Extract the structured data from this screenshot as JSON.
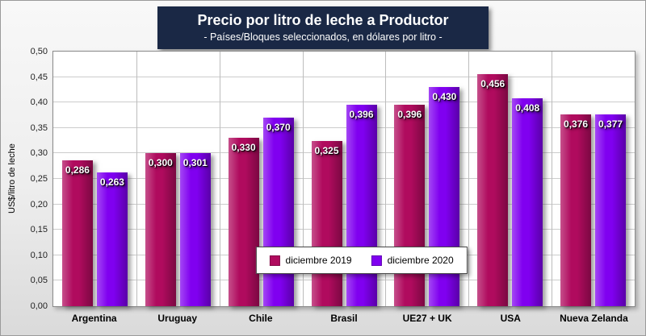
{
  "chart_data": {
    "type": "bar",
    "title": "Precio por litro de leche a Productor",
    "subtitle": "- Países/Bloques seleccionados, en dólares por litro -",
    "ylabel": "US$/litro de leche",
    "ylim": [
      0,
      0.5
    ],
    "ytick_step": 0.05,
    "ytick_labels": [
      "0,00",
      "0,05",
      "0,10",
      "0,15",
      "0,20",
      "0,25",
      "0,30",
      "0,35",
      "0,40",
      "0,45",
      "0,50"
    ],
    "categories": [
      "Argentina",
      "Uruguay",
      "Chile",
      "Brasil",
      "UE27 + UK",
      "USA",
      "Nueva Zelanda"
    ],
    "series": [
      {
        "name": "diciembre 2019",
        "color": "#b00b5e",
        "values": [
          0.286,
          0.3,
          0.33,
          0.325,
          0.396,
          0.456,
          0.376
        ],
        "labels": [
          "0,286",
          "0,300",
          "0,330",
          "0,325",
          "0,396",
          "0,456",
          "0,376"
        ]
      },
      {
        "name": "diciembre 2020",
        "color": "#8000f0",
        "values": [
          0.263,
          0.301,
          0.37,
          0.396,
          0.43,
          0.408,
          0.377
        ],
        "labels": [
          "0,263",
          "0,301",
          "0,370",
          "0,396",
          "0,430",
          "0,408",
          "0,377"
        ]
      }
    ],
    "grid": true,
    "legend_position": "bottom-center-inside",
    "colors": {
      "title_background": "#1a2845",
      "title_text": "#ffffff",
      "plot_background": "#ffffff",
      "canvas_background": "#e8e8e8",
      "gridline": "#cccccc"
    }
  }
}
